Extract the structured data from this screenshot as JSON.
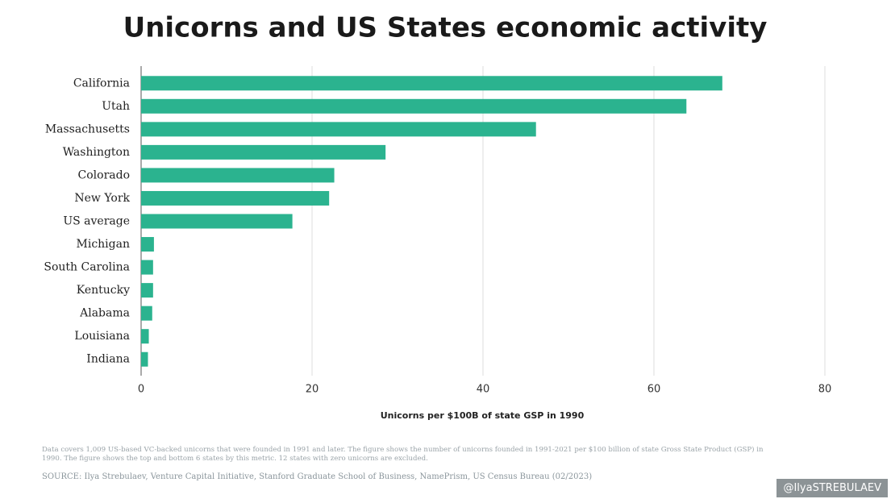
{
  "chart_data": {
    "type": "bar",
    "orientation": "horizontal",
    "title": "Unicorns and US States economic activity",
    "x_label": "Unicorns per $100B of state GSP in 1990",
    "categories": [
      "California",
      "Utah",
      "Massachusetts",
      "Washington",
      "Colorado",
      "New York",
      "US average",
      "Michigan",
      "South Carolina",
      "Kentucky",
      "Alabama",
      "Louisiana",
      "Indiana"
    ],
    "values": [
      68.0,
      63.8,
      46.2,
      28.6,
      22.6,
      22.0,
      17.7,
      1.5,
      1.4,
      1.4,
      1.3,
      0.9,
      0.8
    ],
    "color": "#2bb38f",
    "xlim": [
      0,
      80
    ],
    "xticks": [
      0,
      20,
      40,
      60,
      80
    ],
    "grid": true,
    "notes": "Data covers 1,009 US-based VC-backed unicorns that were founded in 1991 and later. The figure shows the number of unicorns founded in 1991-2021 per $100 billion of state Gross State Product (GSP) in 1990. The figure shows the top and bottom 6 states by this metric. 12 states with zero unicorns are excluded.",
    "source": "SOURCE: Ilya Strebulaev, Venture Capital Initiative, Stanford Graduate School of Business, NamePrism, US Census Bureau (02/2023)",
    "watermark": "@IlyaSTREBULAEV"
  }
}
